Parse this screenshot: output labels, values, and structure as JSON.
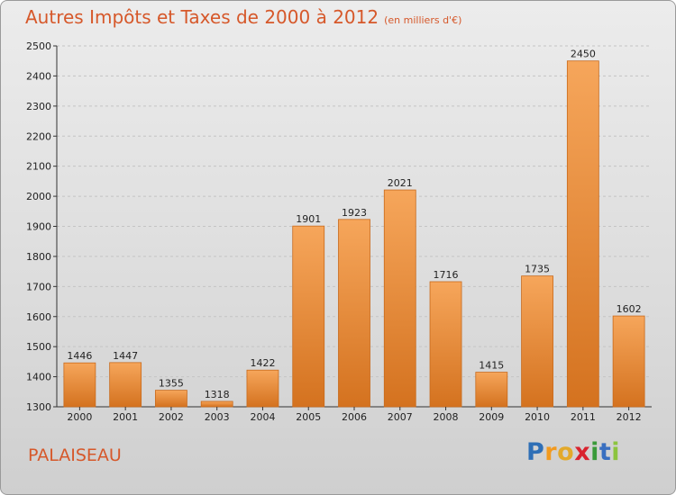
{
  "title": "Autres Impôts et Taxes de 2000 à 2012",
  "subtitle": "(en milliers d'€)",
  "city": "PALAISEAU",
  "logo": {
    "letters": [
      "P",
      "r",
      "o",
      "x",
      "i",
      "t",
      "i"
    ],
    "colors": [
      "#2f6fb6",
      "#f29a1f",
      "#e3a92a",
      "#d9232e",
      "#3a9a3a",
      "#3a6fc0",
      "#8cc43f"
    ]
  },
  "colors": {
    "title": "#d6582a",
    "bar_light": "#f6a65b",
    "bar_dark": "#d4721f",
    "bar_edge": "#c86a1c"
  },
  "chart_data": {
    "type": "bar",
    "title": "Autres Impôts et Taxes de 2000 à 2012",
    "subtitle": "(en milliers d'€)",
    "xlabel": "",
    "ylabel": "",
    "ylim": [
      1300,
      2500
    ],
    "yticks": [
      1300,
      1400,
      1500,
      1600,
      1700,
      1800,
      1900,
      2000,
      2100,
      2200,
      2300,
      2400,
      2500
    ],
    "grid": true,
    "categories": [
      "2000",
      "2001",
      "2002",
      "2003",
      "2004",
      "2005",
      "2006",
      "2007",
      "2008",
      "2009",
      "2010",
      "2011",
      "2012"
    ],
    "values": [
      1446,
      1447,
      1355,
      1318,
      1422,
      1901,
      1923,
      2021,
      1716,
      1415,
      1735,
      2450,
      1602
    ]
  }
}
